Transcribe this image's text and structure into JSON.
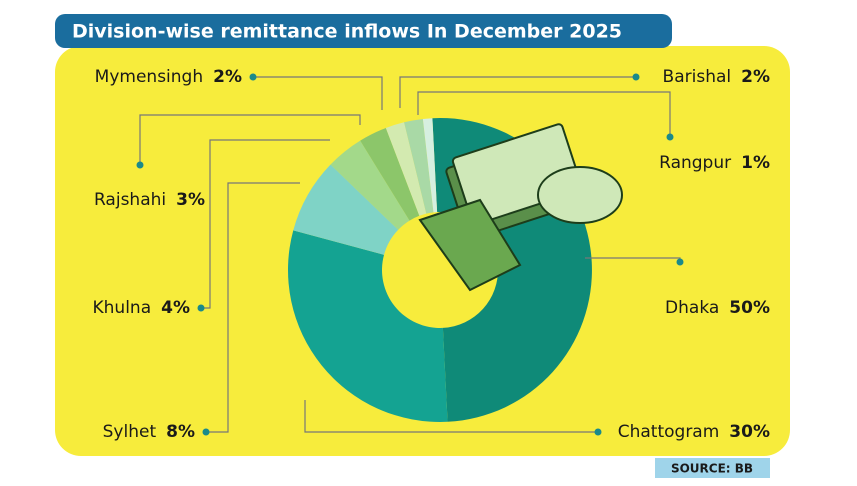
{
  "chart_data": {
    "type": "pie",
    "donut": true,
    "title": "Division-wise remittance inflows In December 2025",
    "source": "SOURCE: BB",
    "categories": [
      "Dhaka",
      "Chattogram",
      "Sylhet",
      "Khulna",
      "Rajshahi",
      "Mymensingh",
      "Barishal",
      "Rangpur"
    ],
    "values": [
      50,
      30,
      8,
      4,
      3,
      2,
      2,
      1
    ],
    "value_labels": [
      "50%",
      "30%",
      "8%",
      "4%",
      "3%",
      "2%",
      "2%",
      "1%"
    ],
    "colors": [
      "#0f8a78",
      "#14a392",
      "#7fd3c6",
      "#a3d98a",
      "#8cc66a",
      "#d3eab0",
      "#a9d9a6",
      "#d6efe0"
    ]
  }
}
